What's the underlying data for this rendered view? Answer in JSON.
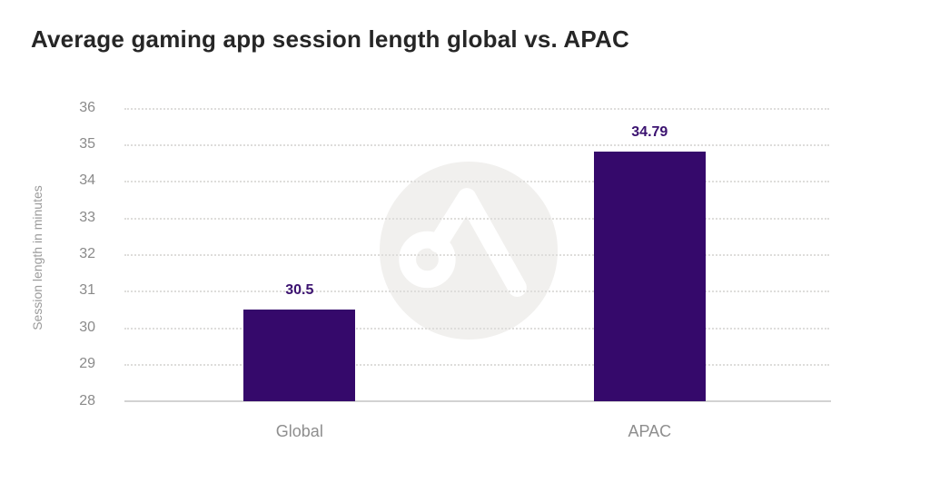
{
  "chart": {
    "title": "Average gaming app session length global vs. APAC",
    "ylabel": "Session length in minutes"
  },
  "chart_data": {
    "type": "bar",
    "title": "Average gaming app session length global vs. APAC",
    "categories": [
      "Global",
      "APAC"
    ],
    "values": [
      30.5,
      34.79
    ],
    "value_labels": [
      "30.5",
      "34.79"
    ],
    "xlabel": "",
    "ylabel": "Session length in minutes",
    "ylim": [
      28,
      36
    ],
    "yticks": [
      28,
      29,
      30,
      31,
      32,
      33,
      34,
      35,
      36
    ],
    "grid": "horizontal-dotted",
    "legend": "none",
    "colors": {
      "bar": "#35096b",
      "value_label": "#3b1270",
      "tick_label": "#8a8a8a",
      "category_label": "#8e8e8e",
      "gridline": "#dedddb",
      "axis_line": "#d2d2d2",
      "title": "#262626",
      "watermark_circle": "#f1f0ee",
      "watermark_glyph": "#ffffff"
    },
    "watermark": "adjust-logo"
  }
}
